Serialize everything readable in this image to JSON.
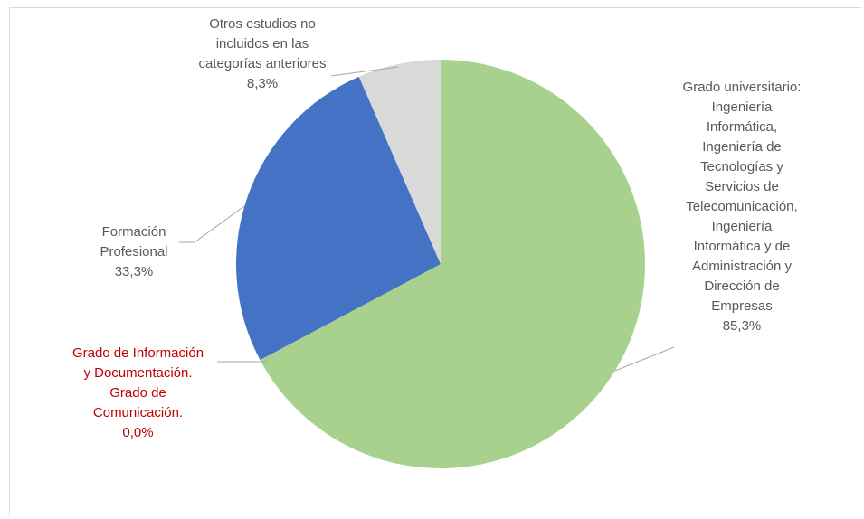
{
  "chart_data": {
    "type": "pie",
    "title": "",
    "slices": [
      {
        "name": "Grado universitario: Ingeniería Informática, Ingeniería de Tecnologías y Servicios de Telecomunicación, Ingeniería Informática y de Administración y Dirección de Empresas",
        "value": 85.3,
        "percent_label": "85,3%",
        "label_lines": [
          "Grado universitario:",
          "Ingeniería",
          "Informática,",
          "Ingeniería de",
          "Tecnologías y",
          "Servicios de",
          "Telecomunicación,",
          "Ingeniería",
          "Informática y de",
          "Administración y",
          "Dirección de",
          "Empresas",
          "85,3%"
        ],
        "color": "#a9d18e"
      },
      {
        "name": "Grado de Información y Documentación. Grado de Comunicación.",
        "value": 0.0,
        "percent_label": "0,0%",
        "label_lines": [
          "Grado de Información",
          "y Documentación.",
          "Grado de",
          "Comunicación.",
          "0,0%"
        ],
        "color": "#ffc000",
        "label_color": "#c00000"
      },
      {
        "name": "Formación Profesional",
        "value": 33.3,
        "percent_label": "33,3%",
        "label_lines": [
          "Formación",
          "Profesional",
          "33,3%"
        ],
        "color": "#4472c4"
      },
      {
        "name": "Otros estudios no incluidos en las categorías anteriores",
        "value": 8.3,
        "percent_label": "8,3%",
        "label_lines": [
          "Otros estudios no",
          "incluidos en las",
          "categorías anteriores",
          "8,3%"
        ],
        "color": "#d9d9d9"
      }
    ],
    "legend": "none",
    "label_text_color": "#595959"
  }
}
